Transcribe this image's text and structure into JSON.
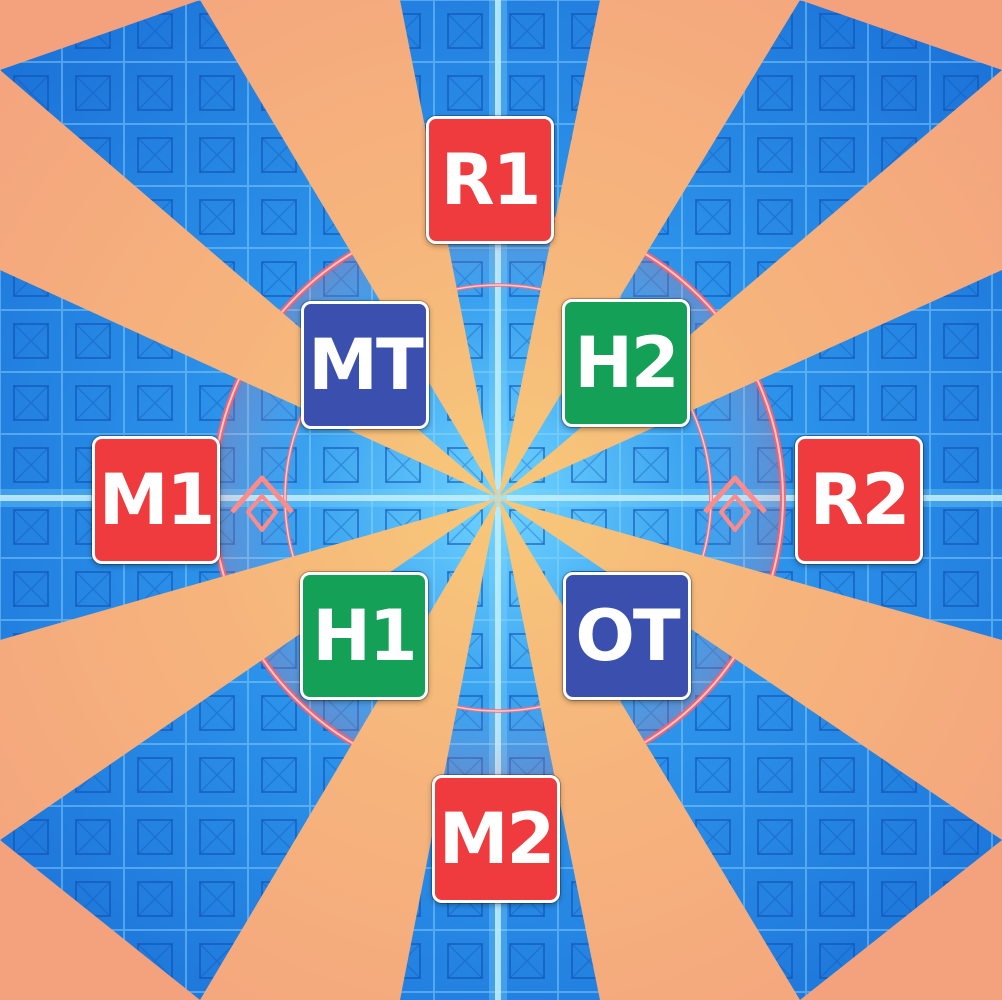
{
  "arena": {
    "floor_color": "#1f7fe0",
    "grid_line_color": "#7fd0ff",
    "ring_color": "#ff6b6b",
    "cone_color": "#f5a77e",
    "cone_inner_color": "#f7c07a",
    "cone_count": 8
  },
  "markers": {
    "R1": {
      "label": "R1",
      "color": "#ef3b3e",
      "role": "ranged"
    },
    "MT": {
      "label": "MT",
      "color": "#3a4fae",
      "role": "tank"
    },
    "H2": {
      "label": "H2",
      "color": "#15a058",
      "role": "healer"
    },
    "M1": {
      "label": "M1",
      "color": "#ef3b3e",
      "role": "melee"
    },
    "R2": {
      "label": "R2",
      "color": "#ef3b3e",
      "role": "ranged"
    },
    "H1": {
      "label": "H1",
      "color": "#15a058",
      "role": "healer"
    },
    "OT": {
      "label": "OT",
      "color": "#3a4fae",
      "role": "tank"
    },
    "M2": {
      "label": "M2",
      "color": "#ef3b3e",
      "role": "melee"
    }
  },
  "icons": {
    "left_chevron": "chevron-up-icon",
    "right_chevron": "chevron-up-icon"
  }
}
